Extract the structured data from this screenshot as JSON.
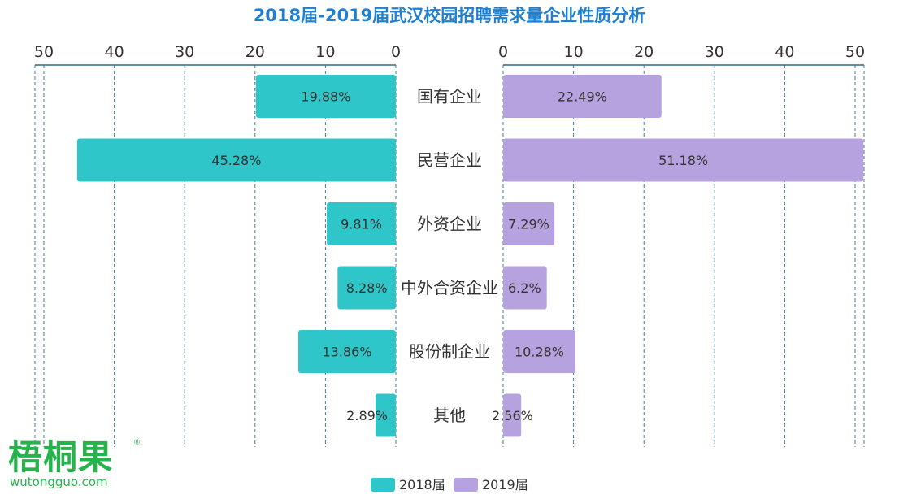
{
  "chart_data": {
    "type": "bar",
    "title": "2018届-2019届武汉校园招聘需求量企业性质分析",
    "categories": [
      "国有企业",
      "民营企业",
      "外资企业",
      "中外合资企业",
      "股份制企业",
      "其他"
    ],
    "series": [
      {
        "name": "2018届",
        "values": [
          19.88,
          45.28,
          9.81,
          8.28,
          13.86,
          2.89
        ],
        "labels": [
          "19.88%",
          "45.28%",
          "9.81%",
          "8.28%",
          "13.86%",
          "2.89%"
        ]
      },
      {
        "name": "2019届",
        "values": [
          22.49,
          51.18,
          7.29,
          6.2,
          10.28,
          2.56
        ],
        "labels": [
          "22.49%",
          "51.18%",
          "7.29%",
          "6.2%",
          "10.28%",
          "2.56%"
        ]
      }
    ],
    "xlim": [
      0,
      50
    ],
    "ticks": [
      "0",
      "10",
      "20",
      "30",
      "40",
      "50"
    ],
    "grid": true,
    "legend_position": "bottom",
    "colors": {
      "series_2018": "#2ec6c8",
      "series_2019": "#b6a2de",
      "title": "#1f7fd0",
      "axis": "#2d6b86",
      "grid": "#3f7f93",
      "label": "#333333"
    }
  },
  "watermark": {
    "main": "梧桐果",
    "sub": "wutongguo.com",
    "reg": "®"
  }
}
